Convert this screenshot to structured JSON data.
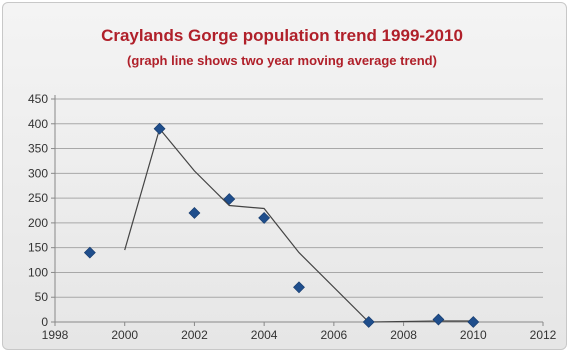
{
  "chart_data": {
    "type": "scatter",
    "title": "Craylands Gorge population trend  1999-2010",
    "subtitle": "(graph line shows two year moving average trend)",
    "xlabel": "",
    "ylabel": "",
    "xlim": [
      1998,
      2012
    ],
    "ylim": [
      0,
      450
    ],
    "xticks": [
      "1998",
      "2000",
      "2002",
      "2004",
      "2006",
      "2008",
      "2010",
      "2012"
    ],
    "yticks": [
      "0",
      "50",
      "100",
      "150",
      "200",
      "250",
      "300",
      "350",
      "400",
      "450"
    ],
    "grid": true,
    "legend": "none",
    "series": [
      {
        "type": "scatter",
        "marker": "diamond",
        "color": "#1f4e8c",
        "x": [
          1999,
          2001,
          2002,
          2003,
          2004,
          2005,
          2007,
          2009,
          2010
        ],
        "y": [
          140,
          390,
          220,
          248,
          210,
          70,
          0,
          5,
          0
        ]
      },
      {
        "type": "line",
        "color": "#444444",
        "x": [
          2000,
          2001,
          2002,
          2003,
          2004,
          2005,
          2007,
          2009,
          2010
        ],
        "y": [
          145,
          390,
          305,
          235,
          229,
          140,
          0,
          2,
          2
        ]
      }
    ]
  }
}
